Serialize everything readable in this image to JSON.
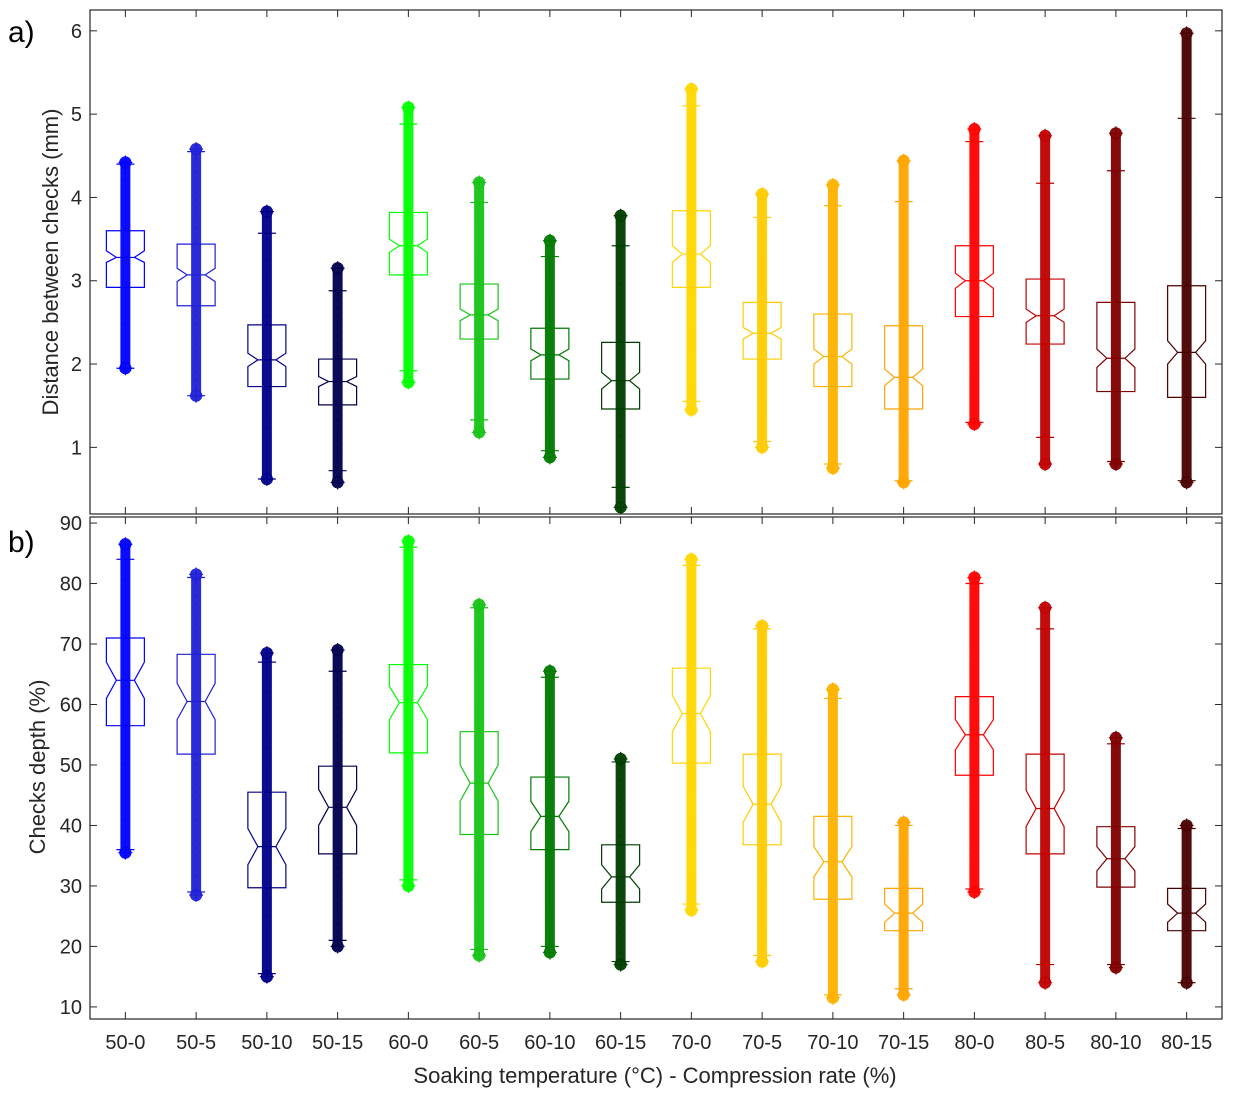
{
  "figure": {
    "panel_a_label": "a)",
    "panel_b_label": "b)",
    "xlabel": "Soaking temperature (°C) - Compression rate (%)"
  },
  "colors": {
    "50-0": "#0000ff",
    "50-5": "#2020d8",
    "50-10": "#00008b",
    "50-15": "#00004d",
    "60-0": "#00ff00",
    "60-5": "#16c316",
    "60-10": "#007a00",
    "60-15": "#003d00",
    "70-0": "#ffd700",
    "70-5": "#ffcc00",
    "70-10": "#ffb300",
    "70-15": "#ffa500",
    "80-0": "#ff0000",
    "80-5": "#c00000",
    "80-10": "#800000",
    "80-15": "#4a0000",
    "outlier_plus": "#ff0000",
    "axis": "#262626"
  },
  "chart_data": [
    {
      "type": "box",
      "panel": "a)",
      "title": "",
      "xlabel": "",
      "ylabel": "Distance between checks (mm)",
      "ylim": [
        0.2,
        6.25
      ],
      "yticks": [
        1,
        2,
        3,
        4,
        5,
        6
      ],
      "grid": false,
      "notched": true,
      "categories": [
        "50-0",
        "50-5",
        "50-10",
        "50-15",
        "60-0",
        "60-5",
        "60-10",
        "60-15",
        "70-0",
        "70-5",
        "70-10",
        "70-15",
        "80-0",
        "80-5",
        "80-10",
        "80-15"
      ],
      "boxes": [
        {
          "q1": 2.92,
          "median": 3.28,
          "q3": 3.6,
          "notch_lo": 3.22,
          "notch_hi": 3.36,
          "whisker_lo": 1.95,
          "whisker_hi": 4.4,
          "outlier_min": 1.95,
          "outlier_max": 4.42
        },
        {
          "q1": 2.7,
          "median": 3.07,
          "q3": 3.44,
          "notch_lo": 2.99,
          "notch_hi": 3.15,
          "whisker_lo": 1.62,
          "whisker_hi": 4.55,
          "outlier_min": 1.62,
          "outlier_max": 4.58
        },
        {
          "q1": 1.73,
          "median": 2.05,
          "q3": 2.47,
          "notch_lo": 1.97,
          "notch_hi": 2.13,
          "whisker_lo": 0.62,
          "whisker_hi": 3.57,
          "outlier_min": 0.62,
          "outlier_max": 3.83
        },
        {
          "q1": 1.51,
          "median": 1.79,
          "q3": 2.06,
          "notch_lo": 1.73,
          "notch_hi": 1.85,
          "whisker_lo": 0.72,
          "whisker_hi": 2.88,
          "outlier_min": 0.58,
          "outlier_max": 3.15
        },
        {
          "q1": 3.07,
          "median": 3.42,
          "q3": 3.82,
          "notch_lo": 3.34,
          "notch_hi": 3.5,
          "whisker_lo": 1.92,
          "whisker_hi": 4.88,
          "outlier_min": 1.78,
          "outlier_max": 5.08
        },
        {
          "q1": 2.3,
          "median": 2.59,
          "q3": 2.96,
          "notch_lo": 2.52,
          "notch_hi": 2.66,
          "whisker_lo": 1.33,
          "whisker_hi": 3.94,
          "outlier_min": 1.18,
          "outlier_max": 4.18
        },
        {
          "q1": 1.82,
          "median": 2.11,
          "q3": 2.43,
          "notch_lo": 2.04,
          "notch_hi": 2.18,
          "whisker_lo": 0.96,
          "whisker_hi": 3.29,
          "outlier_min": 0.88,
          "outlier_max": 3.48
        },
        {
          "q1": 1.46,
          "median": 1.8,
          "q3": 2.26,
          "notch_lo": 1.7,
          "notch_hi": 1.9,
          "whisker_lo": 0.52,
          "whisker_hi": 3.42,
          "outlier_min": 0.28,
          "outlier_max": 3.78
        },
        {
          "q1": 2.92,
          "median": 3.32,
          "q3": 3.84,
          "notch_lo": 3.22,
          "notch_hi": 3.42,
          "whisker_lo": 1.55,
          "whisker_hi": 5.1,
          "outlier_min": 1.45,
          "outlier_max": 5.3
        },
        {
          "q1": 2.06,
          "median": 2.37,
          "q3": 2.74,
          "notch_lo": 2.3,
          "notch_hi": 2.44,
          "whisker_lo": 1.07,
          "whisker_hi": 3.76,
          "outlier_min": 1.0,
          "outlier_max": 4.04
        },
        {
          "q1": 1.73,
          "median": 2.09,
          "q3": 2.6,
          "notch_lo": 2.0,
          "notch_hi": 2.18,
          "whisker_lo": 0.8,
          "whisker_hi": 3.9,
          "outlier_min": 0.75,
          "outlier_max": 4.15
        },
        {
          "q1": 1.46,
          "median": 1.84,
          "q3": 2.46,
          "notch_lo": 1.74,
          "notch_hi": 1.94,
          "whisker_lo": 0.6,
          "whisker_hi": 3.95,
          "outlier_min": 0.58,
          "outlier_max": 4.44
        },
        {
          "q1": 2.57,
          "median": 3.0,
          "q3": 3.42,
          "notch_lo": 2.91,
          "notch_hi": 3.09,
          "whisker_lo": 1.3,
          "whisker_hi": 4.67,
          "outlier_min": 1.28,
          "outlier_max": 4.82
        },
        {
          "q1": 2.24,
          "median": 2.58,
          "q3": 3.02,
          "notch_lo": 2.5,
          "notch_hi": 2.66,
          "whisker_lo": 1.12,
          "whisker_hi": 4.17,
          "outlier_min": 0.8,
          "outlier_max": 4.74
        },
        {
          "q1": 1.67,
          "median": 2.07,
          "q3": 2.74,
          "notch_lo": 1.96,
          "notch_hi": 2.18,
          "whisker_lo": 0.83,
          "whisker_hi": 4.32,
          "outlier_min": 0.8,
          "outlier_max": 4.77
        },
        {
          "q1": 1.6,
          "median": 2.14,
          "q3": 2.94,
          "notch_lo": 2.0,
          "notch_hi": 2.28,
          "whisker_lo": 0.6,
          "whisker_hi": 4.95,
          "outlier_min": 0.58,
          "outlier_max": 5.97
        }
      ]
    },
    {
      "type": "box",
      "panel": "b)",
      "title": "",
      "xlabel": "Soaking temperature (°C) - Compression rate (%)",
      "ylabel": "Checks depth (%)",
      "ylim": [
        8,
        91
      ],
      "yticks": [
        10,
        20,
        30,
        40,
        50,
        60,
        70,
        80,
        90
      ],
      "grid": false,
      "notched": true,
      "categories": [
        "50-0",
        "50-5",
        "50-10",
        "50-15",
        "60-0",
        "60-5",
        "60-10",
        "60-15",
        "70-0",
        "70-5",
        "70-10",
        "70-15",
        "80-0",
        "80-5",
        "80-10",
        "80-15"
      ],
      "boxes": [
        {
          "q1": 56.5,
          "median": 64.0,
          "q3": 71.0,
          "notch_lo": 61.0,
          "notch_hi": 67.0,
          "whisker_lo": 36.0,
          "whisker_hi": 84.0,
          "outlier_min": 35.5,
          "outlier_max": 86.5
        },
        {
          "q1": 51.8,
          "median": 60.5,
          "q3": 68.3,
          "notch_lo": 57.5,
          "notch_hi": 63.5,
          "whisker_lo": 29.0,
          "whisker_hi": 81.0,
          "outlier_min": 28.5,
          "outlier_max": 81.5
        },
        {
          "q1": 29.7,
          "median": 36.5,
          "q3": 45.5,
          "notch_lo": 33.5,
          "notch_hi": 39.5,
          "whisker_lo": 15.5,
          "whisker_hi": 67.0,
          "outlier_min": 15.0,
          "outlier_max": 68.5
        },
        {
          "q1": 35.3,
          "median": 43.0,
          "q3": 49.8,
          "notch_lo": 40.0,
          "notch_hi": 46.0,
          "whisker_lo": 21.0,
          "whisker_hi": 65.5,
          "outlier_min": 20.0,
          "outlier_max": 69.0
        },
        {
          "q1": 52.0,
          "median": 60.3,
          "q3": 66.6,
          "notch_lo": 57.5,
          "notch_hi": 63.0,
          "whisker_lo": 31.0,
          "whisker_hi": 86.0,
          "outlier_min": 30.0,
          "outlier_max": 87.0
        },
        {
          "q1": 38.5,
          "median": 47.0,
          "q3": 55.5,
          "notch_lo": 44.0,
          "notch_hi": 50.0,
          "whisker_lo": 19.5,
          "whisker_hi": 76.0,
          "outlier_min": 18.5,
          "outlier_max": 76.5
        },
        {
          "q1": 36.0,
          "median": 41.5,
          "q3": 48.0,
          "notch_lo": 39.0,
          "notch_hi": 44.0,
          "whisker_lo": 20.0,
          "whisker_hi": 64.5,
          "outlier_min": 19.0,
          "outlier_max": 65.5
        },
        {
          "q1": 27.3,
          "median": 31.5,
          "q3": 36.8,
          "notch_lo": 29.5,
          "notch_hi": 33.5,
          "whisker_lo": 17.5,
          "whisker_hi": 50.5,
          "outlier_min": 17.0,
          "outlier_max": 51.0
        },
        {
          "q1": 50.3,
          "median": 58.5,
          "q3": 66.0,
          "notch_lo": 55.5,
          "notch_hi": 61.5,
          "whisker_lo": 27.0,
          "whisker_hi": 83.0,
          "outlier_min": 26.0,
          "outlier_max": 84.0
        },
        {
          "q1": 36.8,
          "median": 43.5,
          "q3": 51.8,
          "notch_lo": 40.5,
          "notch_hi": 46.5,
          "whisker_lo": 18.5,
          "whisker_hi": 72.5,
          "outlier_min": 17.5,
          "outlier_max": 73.0
        },
        {
          "q1": 27.8,
          "median": 34.0,
          "q3": 41.5,
          "notch_lo": 31.5,
          "notch_hi": 36.5,
          "whisker_lo": 12.0,
          "whisker_hi": 61.0,
          "outlier_min": 11.5,
          "outlier_max": 62.5
        },
        {
          "q1": 22.6,
          "median": 25.5,
          "q3": 29.6,
          "notch_lo": 24.0,
          "notch_hi": 27.0,
          "whisker_lo": 13.0,
          "whisker_hi": 40.0,
          "outlier_min": 12.0,
          "outlier_max": 40.5
        },
        {
          "q1": 48.3,
          "median": 55.0,
          "q3": 61.3,
          "notch_lo": 52.5,
          "notch_hi": 57.5,
          "whisker_lo": 29.5,
          "whisker_hi": 80.0,
          "outlier_min": 29.0,
          "outlier_max": 81.0
        },
        {
          "q1": 35.3,
          "median": 42.8,
          "q3": 51.8,
          "notch_lo": 39.8,
          "notch_hi": 45.8,
          "whisker_lo": 17.0,
          "whisker_hi": 72.5,
          "outlier_min": 14.0,
          "outlier_max": 76.0
        },
        {
          "q1": 29.8,
          "median": 34.5,
          "q3": 39.8,
          "notch_lo": 32.5,
          "notch_hi": 36.5,
          "whisker_lo": 17.0,
          "whisker_hi": 53.5,
          "outlier_min": 16.5,
          "outlier_max": 54.5
        },
        {
          "q1": 22.6,
          "median": 25.5,
          "q3": 29.6,
          "notch_lo": 24.0,
          "notch_hi": 27.0,
          "whisker_lo": 14.0,
          "whisker_hi": 39.5,
          "outlier_min": 14.0,
          "outlier_max": 40.0
        }
      ]
    }
  ]
}
